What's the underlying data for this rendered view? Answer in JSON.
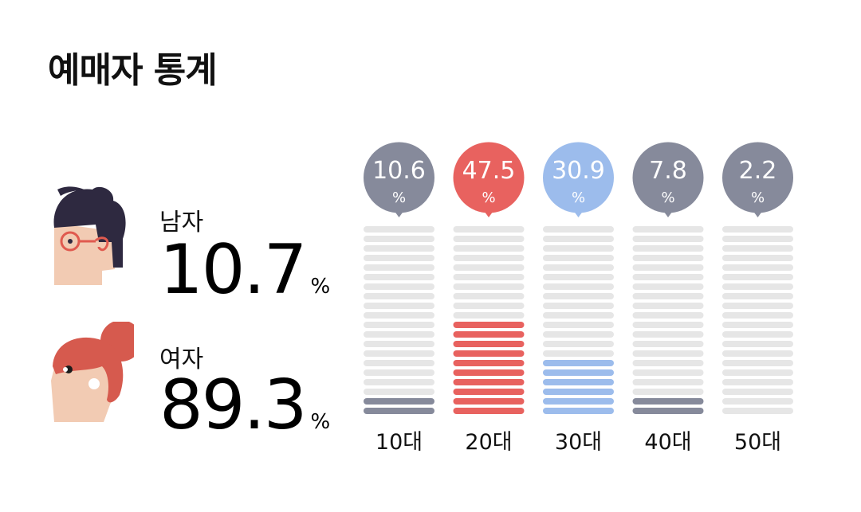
{
  "title": "예매자 통계",
  "gender": {
    "male": {
      "label": "남자",
      "value": "10.7",
      "unit": "%"
    },
    "female": {
      "label": "여자",
      "value": "89.3",
      "unit": "%"
    }
  },
  "colors": {
    "highlight_red": "#e8625f",
    "highlight_blue": "#9cbcec",
    "neutral_gray": "#868a9b",
    "empty_bar": "#e6e6e6",
    "male_hair": "#2e2940",
    "female_hair": "#d65a4e",
    "skin": "#f2cbb3"
  },
  "chart_data": {
    "type": "bar",
    "categories": [
      "10대",
      "20대",
      "30대",
      "40대",
      "50대"
    ],
    "values": [
      10.6,
      47.5,
      30.9,
      7.8,
      2.2
    ],
    "value_labels": [
      "10.6",
      "47.5",
      "30.9",
      "7.8",
      "2.2"
    ],
    "unit": "%",
    "series_colors": [
      "#868a9b",
      "#e8625f",
      "#9cbcec",
      "#868a9b",
      "#868a9b"
    ],
    "segments": 20,
    "filled_segments": [
      2,
      10,
      6,
      2,
      0
    ],
    "ylim": [
      0,
      100
    ],
    "grid": false,
    "legend": "none"
  }
}
